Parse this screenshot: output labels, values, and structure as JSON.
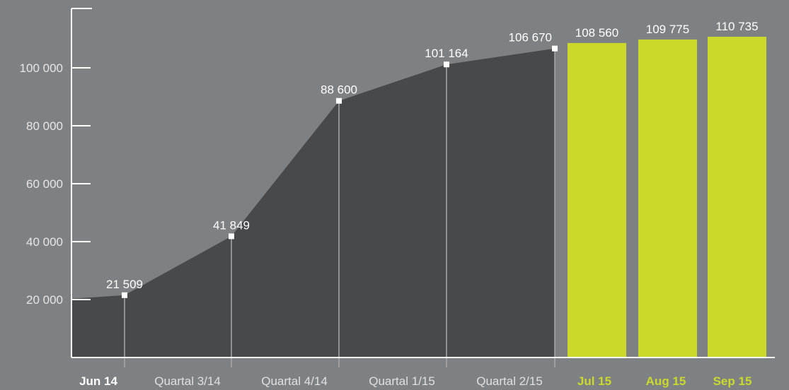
{
  "chart_data": {
    "type": "area",
    "colors": {
      "background": "#7e8183",
      "area": "#48494b",
      "bars": "#cbd92b",
      "axis": "#ffffff",
      "marker": "#ffffff",
      "drop_line": "#a5a7a9"
    },
    "y_axis": {
      "ylim": [
        0,
        120000
      ],
      "ticks": [
        20000,
        40000,
        60000,
        80000,
        100000
      ],
      "tick_labels": [
        "20 000",
        "40 000",
        "60 000",
        "80 000",
        "100 000"
      ]
    },
    "area_series": {
      "categories": [
        "Jun 14",
        "Quartal 3/14",
        "Quartal 4/14",
        "Quartal 1/15",
        "Quartal 2/15"
      ],
      "values": [
        21509,
        41849,
        88600,
        101164,
        106670
      ],
      "value_labels": [
        "21 509",
        "41 849",
        "88 600",
        "101 164",
        "106 670"
      ]
    },
    "bar_series": {
      "categories": [
        "Jul 15",
        "Aug 15",
        "Sep 15"
      ],
      "values": [
        108560,
        109775,
        110735
      ],
      "value_labels": [
        "108 560",
        "109 775",
        "110 735"
      ]
    }
  }
}
